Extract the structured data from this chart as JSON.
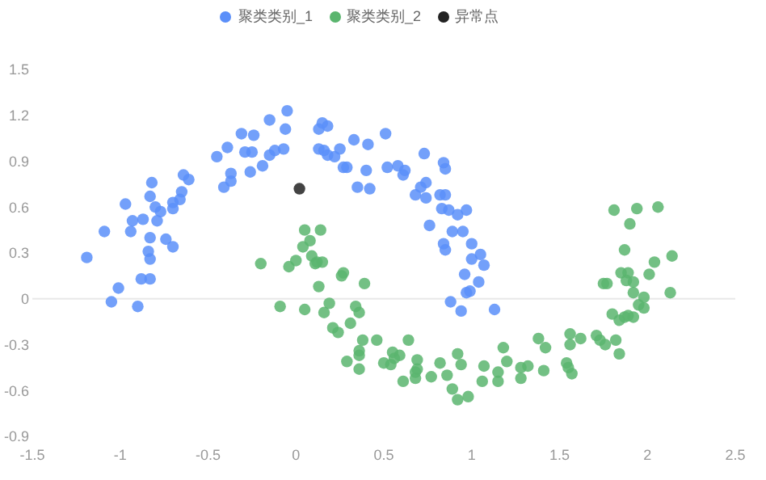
{
  "chart_data": {
    "type": "scatter",
    "xlim": [
      -1.5,
      2.5
    ],
    "xticks": [
      -1.5,
      -1,
      -0.5,
      0,
      0.5,
      1,
      1.5,
      2,
      2.5
    ],
    "ylim": [
      -0.9,
      1.5
    ],
    "yticks": [
      -0.9,
      -0.6,
      -0.3,
      0,
      0.3,
      0.6,
      0.9,
      1.2,
      1.5
    ],
    "grid": false,
    "legend": "top",
    "marker": "circle",
    "ref_lines": [
      {
        "axis": "y",
        "value": 0,
        "color": "#e8e8e8"
      }
    ],
    "series": [
      {
        "name": "聚类类别_1",
        "color": "#5b8ff9",
        "x": [
          -0.05,
          -0.15,
          -0.06,
          -0.31,
          -0.24,
          -0.39,
          -0.45,
          -0.29,
          -0.25,
          -0.15,
          -0.12,
          -0.07,
          -0.19,
          -0.26,
          -0.37,
          -0.37,
          -0.41,
          -0.64,
          -0.61,
          -0.82,
          -0.83,
          -0.65,
          -0.7,
          -0.66,
          -0.7,
          -0.8,
          -0.77,
          -0.79,
          -0.87,
          -0.93,
          -0.97,
          -1.09,
          -0.94,
          -0.83,
          -0.74,
          -0.7,
          -0.84,
          -0.83,
          -1.19,
          -0.88,
          -0.83,
          -1.01,
          -1.05,
          -0.9,
          0.15,
          0.18,
          0.13,
          0.51,
          0.33,
          0.41,
          0.13,
          0.16,
          0.25,
          0.22,
          0.18,
          0.27,
          0.29,
          0.4,
          0.52,
          0.58,
          0.62,
          0.61,
          0.73,
          0.84,
          0.85,
          0.35,
          0.42,
          0.74,
          0.71,
          0.68,
          0.74,
          0.82,
          0.85,
          0.83,
          0.87,
          0.92,
          0.97,
          0.76,
          0.89,
          0.95,
          0.84,
          0.85,
          1.0,
          1.05,
          1.0,
          1.07,
          0.96,
          1.04,
          0.99,
          0.97,
          0.88,
          0.94,
          1.13
        ],
        "values": [
          1.23,
          1.17,
          1.11,
          1.08,
          1.07,
          0.99,
          0.93,
          0.96,
          0.96,
          0.94,
          0.97,
          0.98,
          0.87,
          0.83,
          0.82,
          0.77,
          0.73,
          0.81,
          0.78,
          0.76,
          0.67,
          0.7,
          0.63,
          0.65,
          0.59,
          0.6,
          0.57,
          0.51,
          0.52,
          0.51,
          0.62,
          0.44,
          0.44,
          0.4,
          0.39,
          0.34,
          0.31,
          0.26,
          0.27,
          0.13,
          0.13,
          0.07,
          -0.02,
          -0.05,
          1.15,
          1.13,
          1.11,
          1.08,
          1.04,
          1.01,
          0.98,
          0.97,
          0.98,
          0.93,
          0.94,
          0.86,
          0.86,
          0.84,
          0.86,
          0.87,
          0.84,
          0.81,
          0.95,
          0.89,
          0.85,
          0.73,
          0.72,
          0.76,
          0.73,
          0.68,
          0.66,
          0.68,
          0.68,
          0.59,
          0.58,
          0.55,
          0.58,
          0.48,
          0.44,
          0.44,
          0.36,
          0.32,
          0.36,
          0.29,
          0.26,
          0.22,
          0.16,
          0.11,
          0.05,
          0.04,
          -0.02,
          -0.08,
          -0.07
        ]
      },
      {
        "name": "聚类类别_2",
        "color": "#5ab56e",
        "x": [
          -0.2,
          -0.04,
          0.0,
          0.04,
          0.05,
          0.14,
          0.08,
          0.09,
          0.12,
          0.15,
          0.11,
          0.26,
          0.27,
          0.39,
          0.13,
          -0.09,
          0.05,
          0.16,
          0.19,
          0.34,
          0.36,
          0.31,
          0.21,
          0.24,
          0.38,
          0.46,
          0.64,
          0.36,
          0.36,
          0.29,
          0.55,
          0.59,
          0.56,
          0.5,
          0.54,
          0.69,
          0.36,
          0.69,
          0.68,
          0.61,
          0.68,
          0.77,
          0.82,
          0.86,
          0.92,
          0.94,
          0.89,
          0.92,
          0.98,
          1.06,
          1.07,
          1.15,
          1.15,
          1.2,
          1.18,
          1.28,
          1.32,
          1.28,
          1.38,
          1.42,
          1.41,
          1.54,
          1.55,
          1.57,
          1.56,
          1.56,
          1.62,
          1.71,
          1.73,
          1.76,
          1.82,
          1.84,
          1.75,
          1.77,
          1.8,
          1.84,
          1.87,
          1.89,
          1.92,
          1.85,
          1.89,
          1.92,
          1.88,
          1.92,
          1.87,
          1.98,
          1.95,
          1.98,
          2.01,
          2.04,
          2.14,
          2.13,
          1.81,
          1.9,
          1.94,
          2.06
        ],
        "values": [
          0.23,
          0.21,
          0.25,
          0.34,
          0.45,
          0.45,
          0.38,
          0.28,
          0.24,
          0.24,
          0.23,
          0.15,
          0.17,
          0.1,
          0.08,
          -0.05,
          -0.07,
          -0.09,
          -0.03,
          -0.05,
          -0.09,
          -0.16,
          -0.19,
          -0.22,
          -0.27,
          -0.27,
          -0.27,
          -0.34,
          -0.37,
          -0.41,
          -0.35,
          -0.37,
          -0.39,
          -0.42,
          -0.43,
          -0.4,
          -0.46,
          -0.46,
          -0.48,
          -0.54,
          -0.52,
          -0.51,
          -0.42,
          -0.5,
          -0.36,
          -0.43,
          -0.59,
          -0.66,
          -0.64,
          -0.54,
          -0.44,
          -0.48,
          -0.54,
          -0.41,
          -0.32,
          -0.45,
          -0.44,
          -0.52,
          -0.26,
          -0.32,
          -0.47,
          -0.42,
          -0.45,
          -0.49,
          -0.23,
          -0.3,
          -0.26,
          -0.24,
          -0.27,
          -0.3,
          -0.27,
          -0.36,
          0.1,
          0.1,
          -0.1,
          -0.14,
          -0.12,
          -0.11,
          -0.12,
          0.17,
          0.17,
          0.11,
          0.12,
          0.04,
          0.32,
          0.01,
          -0.04,
          -0.06,
          0.16,
          0.24,
          0.28,
          0.04,
          0.58,
          0.49,
          0.59,
          0.6
        ]
      },
      {
        "name": "异常点",
        "color": "#222222",
        "x": [
          0.02
        ],
        "values": [
          0.72
        ]
      }
    ]
  }
}
